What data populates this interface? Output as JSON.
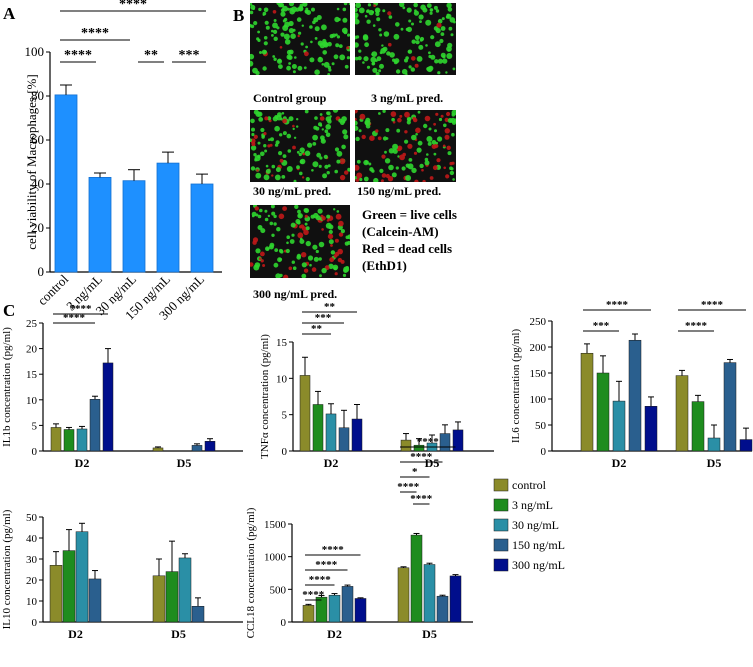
{
  "colors": {
    "panelA": "#1e90ff",
    "control": "#8b8b2a",
    "d3": "#1e8c1e",
    "d30": "#2a8fa6",
    "d150": "#2a5f8e",
    "d300": "#000e8c",
    "live": "#2fd62f",
    "dead": "#c01818",
    "micro_bg": "#101010"
  },
  "panels": {
    "A": "A",
    "B": "B",
    "C": "C"
  },
  "panelB": {
    "images": [
      {
        "label": "Control group",
        "dead_frac": 0.04
      },
      {
        "label": "3 ng/mL pred.",
        "dead_frac": 0.07
      },
      {
        "label": "30 ng/mL pred.",
        "dead_frac": 0.18
      },
      {
        "label": "150 ng/mL pred.",
        "dead_frac": 0.42
      },
      {
        "label": "300 ng/mL pred.",
        "dead_frac": 0.3
      }
    ],
    "legend_lines": [
      "Green = live cells",
      "(Calcein-AM)",
      "Red = dead cells",
      "(EthD1)"
    ]
  },
  "legend": {
    "entries": [
      "control",
      "3 ng/mL",
      "30 ng/mL",
      "150 ng/mL",
      "300 ng/mL"
    ]
  },
  "chart_data": [
    {
      "id": "A",
      "type": "bar",
      "ylabel": "cell viability of Macrophages [%]",
      "ylim": [
        0,
        100
      ],
      "ticks": [
        0,
        20,
        40,
        60,
        80,
        100
      ],
      "categories": [
        "control",
        "3 ng/mL",
        "30 ng/mL",
        "150 ng/mL",
        "300 ng/mL"
      ],
      "values": [
        80.5,
        43,
        41.5,
        49.5,
        40
      ],
      "errors": [
        4.5,
        2,
        5,
        5,
        4.5
      ],
      "significance": [
        {
          "from": 0,
          "to": 4,
          "label": "****"
        },
        {
          "from": 0,
          "to": 2,
          "label": "****"
        },
        {
          "from": 0,
          "to": 1,
          "label": "****"
        },
        {
          "from": 2,
          "to": 3,
          "label": "**"
        },
        {
          "from": 3,
          "to": 4,
          "label": "***"
        }
      ]
    },
    {
      "id": "IL1b",
      "type": "bar",
      "ylabel": "IL1b concentration (pg/ml)",
      "ylim": [
        0,
        25
      ],
      "ticks": [
        0,
        5,
        10,
        15,
        20,
        25
      ],
      "groups": [
        "D2",
        "D5"
      ],
      "series": [
        {
          "name": "control",
          "values": [
            4.6,
            0.6
          ],
          "errors": [
            0.7,
            0.2
          ]
        },
        {
          "name": "3 ng/mL",
          "values": [
            4.2,
            0
          ],
          "errors": [
            0.4,
            0
          ]
        },
        {
          "name": "30 ng/mL",
          "values": [
            4.3,
            0
          ],
          "errors": [
            0.5,
            0
          ]
        },
        {
          "name": "150 ng/mL",
          "values": [
            10.1,
            1.1
          ],
          "errors": [
            0.6,
            0.3
          ]
        },
        {
          "name": "300 ng/mL",
          "values": [
            17.2,
            1.9
          ],
          "errors": [
            2.8,
            0.5
          ]
        }
      ],
      "significance": [
        {
          "group": 0,
          "from": 0,
          "to": 4,
          "label": "****"
        },
        {
          "group": 0,
          "from": 0,
          "to": 3,
          "label": "****"
        }
      ]
    },
    {
      "id": "TNFa",
      "type": "bar",
      "ylabel": "TNFα concentration (pg/ml)",
      "ylim": [
        0,
        15
      ],
      "ticks": [
        0,
        5,
        10,
        15
      ],
      "groups": [
        "D2",
        "D5"
      ],
      "series": [
        {
          "name": "control",
          "values": [
            10.4,
            1.5
          ],
          "errors": [
            2.5,
            0.9
          ]
        },
        {
          "name": "3 ng/mL",
          "values": [
            6.4,
            0.8
          ],
          "errors": [
            1.8,
            0.9
          ]
        },
        {
          "name": "30 ng/mL",
          "values": [
            5.1,
            1.1
          ],
          "errors": [
            1.4,
            1.1
          ]
        },
        {
          "name": "150 ng/mL",
          "values": [
            3.2,
            2.4
          ],
          "errors": [
            2.4,
            1.2
          ]
        },
        {
          "name": "300 ng/mL",
          "values": [
            4.4,
            2.9
          ],
          "errors": [
            2.0,
            1.1
          ]
        }
      ],
      "significance": [
        {
          "group": 0,
          "from": 0,
          "to": 4,
          "label": "**"
        },
        {
          "group": 0,
          "from": 0,
          "to": 3,
          "label": "***"
        },
        {
          "group": 0,
          "from": 0,
          "to": 2,
          "label": "**"
        }
      ]
    },
    {
      "id": "IL6",
      "type": "bar",
      "ylabel": "IL6 concentration (pg/ml)",
      "ylim": [
        0,
        250
      ],
      "ticks": [
        0,
        50,
        100,
        150,
        200,
        250
      ],
      "groups": [
        "D2",
        "D5"
      ],
      "series": [
        {
          "name": "control",
          "values": [
            188,
            145
          ],
          "errors": [
            18,
            10
          ]
        },
        {
          "name": "3 ng/mL",
          "values": [
            150,
            95
          ],
          "errors": [
            33,
            12
          ]
        },
        {
          "name": "30 ng/mL",
          "values": [
            96,
            25
          ],
          "errors": [
            38,
            25
          ]
        },
        {
          "name": "150 ng/mL",
          "values": [
            213,
            170
          ],
          "errors": [
            12,
            6
          ]
        },
        {
          "name": "300 ng/mL",
          "values": [
            86,
            22
          ],
          "errors": [
            18,
            22
          ]
        }
      ],
      "significance": [
        {
          "group": 0,
          "from": 0,
          "to": 4,
          "label": "****"
        },
        {
          "group": 0,
          "from": 0,
          "to": 2,
          "label": "***"
        },
        {
          "group": 1,
          "from": 0,
          "to": 4,
          "label": "****"
        },
        {
          "group": 1,
          "from": 0,
          "to": 2,
          "label": "****"
        }
      ]
    },
    {
      "id": "IL10",
      "type": "bar",
      "ylabel": "IL10 concentration (pg/ml)",
      "ylim": [
        0,
        50
      ],
      "ticks": [
        0,
        10,
        20,
        30,
        40,
        50
      ],
      "groups": [
        "D2",
        "D5"
      ],
      "series": [
        {
          "name": "control",
          "values": [
            27,
            22
          ],
          "errors": [
            6.5,
            8
          ]
        },
        {
          "name": "3 ng/mL",
          "values": [
            34,
            24
          ],
          "errors": [
            10,
            14.5
          ]
        },
        {
          "name": "30 ng/mL",
          "values": [
            43,
            30.5
          ],
          "errors": [
            4,
            2
          ]
        },
        {
          "name": "150 ng/mL",
          "values": [
            20.5,
            7.5
          ],
          "errors": [
            4,
            4
          ]
        }
      ],
      "significance": []
    },
    {
      "id": "CCL18",
      "type": "bar",
      "ylabel": "CCL18 concentration (pg/ml)",
      "ylim": [
        0,
        1500
      ],
      "ticks": [
        0,
        500,
        1000,
        1500
      ],
      "groups": [
        "D2",
        "D5"
      ],
      "series": [
        {
          "name": "control",
          "values": [
            255,
            830
          ],
          "errors": [
            15,
            15
          ]
        },
        {
          "name": "3 ng/mL",
          "values": [
            380,
            1330
          ],
          "errors": [
            25,
            25
          ]
        },
        {
          "name": "30 ng/mL",
          "values": [
            410,
            880
          ],
          "errors": [
            25,
            20
          ]
        },
        {
          "name": "150 ng/mL",
          "values": [
            545,
            395
          ],
          "errors": [
            20,
            15
          ]
        },
        {
          "name": "300 ng/mL",
          "values": [
            360,
            705
          ],
          "errors": [
            10,
            20
          ]
        }
      ],
      "significance": [
        {
          "group": 0,
          "from": 0,
          "to": 4,
          "label": "****"
        },
        {
          "group": 0,
          "from": 0,
          "to": 3,
          "label": "****"
        },
        {
          "group": 0,
          "from": 0,
          "to": 2,
          "label": "****"
        },
        {
          "group": 0,
          "from": 0,
          "to": 1,
          "label": "****"
        },
        {
          "group": 1,
          "from": 0,
          "to": 4,
          "label": "****"
        },
        {
          "group": 1,
          "from": 0,
          "to": 3,
          "label": "****"
        },
        {
          "group": 1,
          "from": 0,
          "to": 2,
          "label": "*"
        },
        {
          "group": 1,
          "from": 0,
          "to": 1,
          "label": "****"
        },
        {
          "group": 1,
          "from": 1,
          "to": 2,
          "label": "****"
        }
      ]
    }
  ]
}
